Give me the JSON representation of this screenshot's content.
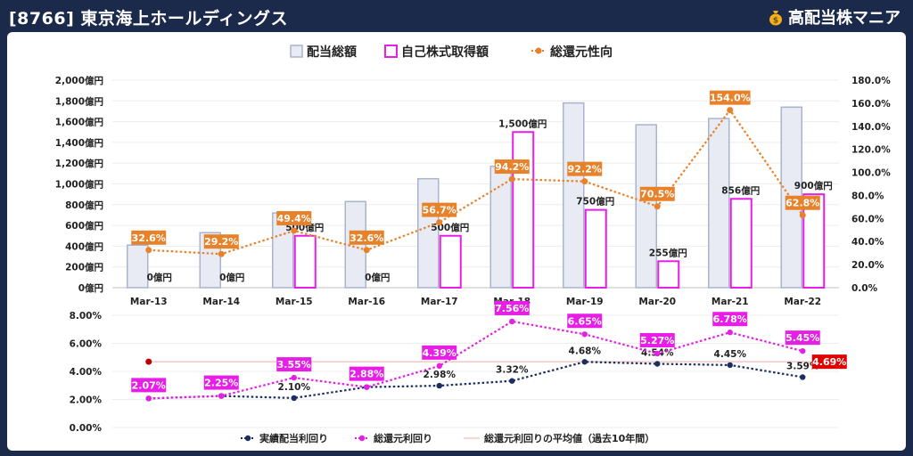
{
  "header": {
    "title": "[8766] 東京海上ホールディングス",
    "brand": "高配当株マニア"
  },
  "colors": {
    "background": "#1b2a4a",
    "dividend_bar_fill": "#e8ebf4",
    "dividend_bar_stroke": "#a9b4cc",
    "buyback_bar_fill": "#ffffff",
    "buyback_bar_stroke": "#e61ee6",
    "total_return_line": "#e8822a",
    "total_return_label_bg": "#e8822a",
    "actual_yield_line": "#1b2f5e",
    "total_yield_line": "#e61ee6",
    "average_line": "#f4c6c6",
    "average_marker": "#c00000",
    "highlight_label_bg": "#e00000"
  },
  "chart_data": [
    {
      "type": "bar",
      "categories": [
        "Mar-13",
        "Mar-14",
        "Mar-15",
        "Mar-16",
        "Mar-17",
        "Mar-18",
        "Mar-19",
        "Mar-20",
        "Mar-21",
        "Mar-22"
      ],
      "legend": [
        "配当総額",
        "自己株式取得額",
        "総還元性向"
      ],
      "y_left_ticks": [
        "0億円",
        "200億円",
        "400億円",
        "600億円",
        "800億円",
        "1,000億円",
        "1,200億円",
        "1,400億円",
        "1,600億円",
        "1,800億円",
        "2,000億円"
      ],
      "y_left_range": [
        0,
        2000
      ],
      "y_right_ticks": [
        "0.0%",
        "20.0%",
        "40.0%",
        "60.0%",
        "80.0%",
        "100.0%",
        "120.0%",
        "140.0%",
        "160.0%",
        "180.0%"
      ],
      "y_right_range": [
        0,
        180
      ],
      "series": [
        {
          "name": "配当総額",
          "type": "bar",
          "values": [
            410,
            530,
            720,
            830,
            1050,
            1170,
            1780,
            1570,
            1630,
            1740
          ]
        },
        {
          "name": "自己株式取得額",
          "type": "bar",
          "values": [
            0,
            0,
            500,
            0,
            500,
            1500,
            750,
            255,
            856,
            900
          ],
          "labels": [
            "0億円",
            "0億円",
            "500億円",
            "0億円",
            "500億円",
            "1,500億円",
            "750億円",
            "255億円",
            "856億円",
            "900億円"
          ]
        },
        {
          "name": "総還元性向",
          "type": "line",
          "axis": "right",
          "values": [
            32.6,
            29.2,
            49.4,
            32.6,
            56.7,
            94.2,
            92.2,
            70.5,
            154.0,
            62.8
          ],
          "labels": [
            "32.6%",
            "29.2%",
            "49.4%",
            "32.6%",
            "56.7%",
            "94.2%",
            "92.2%",
            "70.5%",
            "154.0%",
            "62.8%"
          ]
        }
      ]
    },
    {
      "type": "line",
      "categories": [
        "Mar-13",
        "Mar-14",
        "Mar-15",
        "Mar-16",
        "Mar-17",
        "Mar-18",
        "Mar-19",
        "Mar-20",
        "Mar-21",
        "Mar-22"
      ],
      "legend": [
        "実績配当利回り",
        "総還元利回り",
        "総還元利回りの平均値（過去10年間）"
      ],
      "y_ticks": [
        "0.00%",
        "2.00%",
        "4.00%",
        "6.00%",
        "8.00%"
      ],
      "y_range": [
        0,
        8
      ],
      "series": [
        {
          "name": "実績配当利回り",
          "values": [
            null,
            null,
            2.1,
            null,
            2.98,
            3.32,
            4.68,
            4.54,
            4.45,
            3.59
          ],
          "labels": [
            "",
            "",
            "2.10%",
            "",
            "2.98%",
            "3.32%",
            "4.68%",
            "4.54%",
            "4.45%",
            "3.59%"
          ],
          "points": [
            2.07,
            2.25,
            2.1,
            2.88,
            2.98,
            3.32,
            4.68,
            4.54,
            4.45,
            3.59
          ]
        },
        {
          "name": "総還元利回り",
          "values": [
            2.07,
            2.25,
            3.55,
            2.88,
            4.39,
            7.56,
            6.65,
            5.27,
            6.78,
            5.45
          ],
          "labels": [
            "2.07%",
            "2.25%",
            "3.55%",
            "2.88%",
            "4.39%",
            "7.56%",
            "6.65%",
            "5.27%",
            "6.78%",
            "5.45%"
          ]
        },
        {
          "name": "総還元利回りの平均値（過去10年間）",
          "value": 4.69,
          "label": "4.69%"
        }
      ]
    }
  ]
}
